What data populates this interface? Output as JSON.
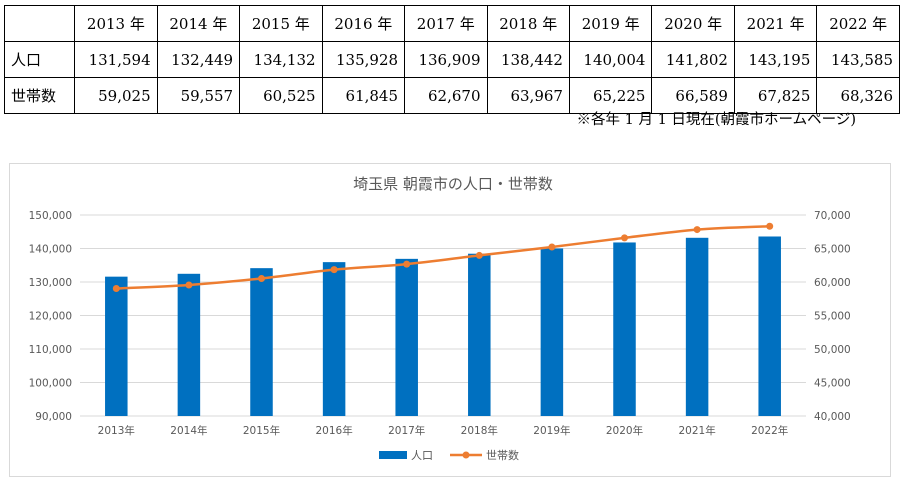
{
  "table": {
    "corner": "",
    "headers": [
      "2013 年",
      "2014 年",
      "2015 年",
      "2016 年",
      "2017 年",
      "2018 年",
      "2019 年",
      "2020 年",
      "2021 年",
      "2022 年"
    ],
    "rows": [
      {
        "label": "人口",
        "values": [
          "131,594",
          "132,449",
          "134,132",
          "135,928",
          "136,909",
          "138,442",
          "140,004",
          "141,802",
          "143,195",
          "143,585"
        ]
      },
      {
        "label": "世帯数",
        "values": [
          "59,025",
          "59,557",
          "60,525",
          "61,845",
          "62,670",
          "63,967",
          "65,225",
          "66,589",
          "67,825",
          "68,326"
        ]
      }
    ]
  },
  "note": "※各年 1 月 1 日現在(朝霞市ホームページ)",
  "chart_data": {
    "type": "bar+line",
    "title": "埼玉県 朝霞市の人口・世帯数",
    "categories": [
      "2013年",
      "2014年",
      "2015年",
      "2016年",
      "2017年",
      "2018年",
      "2019年",
      "2020年",
      "2021年",
      "2022年"
    ],
    "series": [
      {
        "name": "人口",
        "type": "bar",
        "axis": "left",
        "color": "#0070C0",
        "values": [
          131594,
          132449,
          134132,
          135928,
          136909,
          138442,
          140004,
          141802,
          143195,
          143585
        ]
      },
      {
        "name": "世帯数",
        "type": "line",
        "axis": "right",
        "color": "#ED7D31",
        "values": [
          59025,
          59557,
          60525,
          61845,
          62670,
          63967,
          65225,
          66589,
          67825,
          68326
        ]
      }
    ],
    "y_left": {
      "min": 90000,
      "max": 150000,
      "step": 10000,
      "tick_labels": [
        "90,000",
        "100,000",
        "110,000",
        "120,000",
        "130,000",
        "140,000",
        "150,000"
      ]
    },
    "y_right": {
      "min": 40000,
      "max": 70000,
      "step": 5000,
      "tick_labels": [
        "40,000",
        "45,000",
        "50,000",
        "55,000",
        "60,000",
        "65,000",
        "70,000"
      ]
    },
    "grid": true,
    "gridline_color": "#d9d9d9",
    "legend_position": "bottom"
  }
}
